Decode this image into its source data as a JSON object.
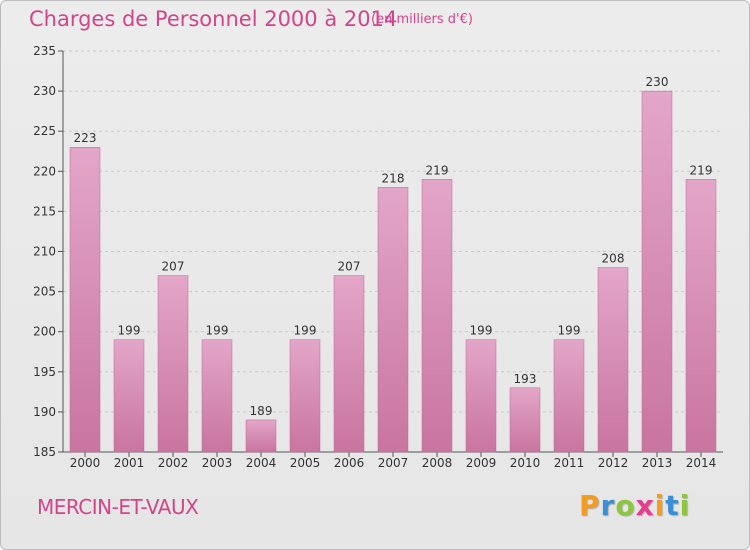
{
  "header": {
    "title": "Charges de Personnel 2000 à 2014",
    "subtitle": "(en milliers d'€)"
  },
  "footer": {
    "place": "MERCIN-ET-VAUX",
    "logo_letters": [
      "P",
      "r",
      "o",
      "x",
      "i",
      "t",
      "i"
    ],
    "logo_colors": [
      "#f39c1f",
      "#3a8fd6",
      "#8cc63f",
      "#e63c8e",
      "#f39c1f",
      "#3a8fd6",
      "#8cc63f"
    ]
  },
  "colors": {
    "bar": "#c9759f",
    "bar_light": "#e3a6c8",
    "grid": "#c9c9c9",
    "text": "#333333"
  },
  "chart_data": {
    "type": "bar",
    "categories": [
      "2000",
      "2001",
      "2002",
      "2003",
      "2004",
      "2005",
      "2006",
      "2007",
      "2008",
      "2009",
      "2010",
      "2011",
      "2012",
      "2013",
      "2014"
    ],
    "values": [
      223,
      199,
      207,
      199,
      189,
      199,
      207,
      218,
      219,
      199,
      193,
      199,
      208,
      230,
      219
    ],
    "yticks": [
      "185",
      "190",
      "195",
      "200",
      "205",
      "210",
      "215",
      "220",
      "225",
      "230",
      "235"
    ],
    "ylim": [
      185,
      235
    ],
    "grid": true
  }
}
